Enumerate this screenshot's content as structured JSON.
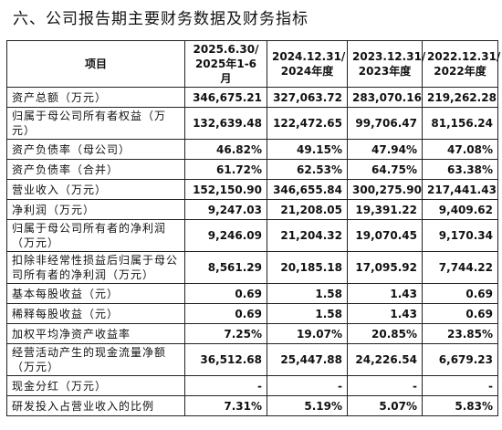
{
  "title": "六、公司报告期主要财务数据及财务指标",
  "table": {
    "header": [
      [
        "项目"
      ],
      [
        "2025.6.30/",
        "2025年1-6月"
      ],
      [
        "2024.12.31/",
        "2024年度"
      ],
      [
        "2023.12.31/",
        "2023年度"
      ],
      [
        "2022.12.31/",
        "2022年度"
      ]
    ],
    "rows": [
      [
        "资产总额（万元）",
        "346,675.21",
        "327,063.72",
        "283,070.16",
        "219,262.28"
      ],
      [
        "归属于母公司所有者权益（万元）",
        "132,639.48",
        "122,472.65",
        "99,706.47",
        "81,156.24"
      ],
      [
        "资产负债率（母公司）",
        "46.82%",
        "49.15%",
        "47.94%",
        "47.08%"
      ],
      [
        "资产负债率（合并）",
        "61.72%",
        "62.53%",
        "64.75%",
        "63.38%"
      ],
      [
        "营业收入（万元）",
        "152,150.90",
        "346,655.84",
        "300,275.90",
        "217,441.43"
      ],
      [
        "净利润（万元）",
        "9,247.03",
        "21,208.05",
        "19,391.22",
        "9,409.62"
      ],
      [
        "归属于母公司所有者的净利润（万元）",
        "9,246.09",
        "21,204.32",
        "19,070.45",
        "9,170.34"
      ],
      [
        "扣除非经常性损益后归属于母公司所有者的净利润（万元）",
        "8,561.29",
        "20,185.18",
        "17,095.92",
        "7,744.22"
      ],
      [
        "基本每股收益（元）",
        "0.69",
        "1.58",
        "1.43",
        "0.69"
      ],
      [
        "稀释每股收益（元）",
        "0.69",
        "1.58",
        "1.43",
        "0.69"
      ],
      [
        "加权平均净资产收益率",
        "7.25%",
        "19.07%",
        "20.85%",
        "23.85%"
      ],
      [
        "经营活动产生的现金流量净额（万元）",
        "36,512.68",
        "25,447.88",
        "24,226.54",
        "6,679.23"
      ],
      [
        "现金分红（万元）",
        "-",
        "-",
        "-",
        "-"
      ],
      [
        "研发投入占营业收入的比例",
        "7.31%",
        "5.19%",
        "5.07%",
        "5.83%"
      ]
    ]
  }
}
